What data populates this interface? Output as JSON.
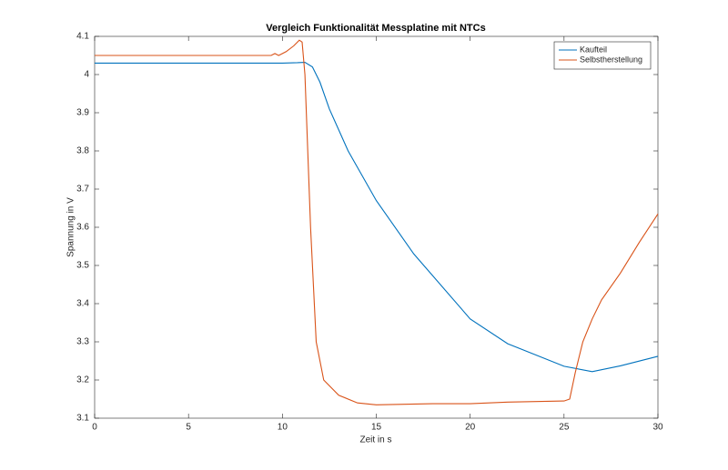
{
  "chart_data": {
    "type": "line",
    "title": "Vergleich Funktionalität Messplatine mit NTCs",
    "x_label": "Zeit in s",
    "y_label": "Spannung in V",
    "xlim": [
      0,
      30
    ],
    "xticks": [
      0,
      5,
      10,
      15,
      20,
      25,
      30
    ],
    "ylim": [
      3.1,
      4.1
    ],
    "yticks": [
      3.1,
      3.2,
      3.3,
      3.4,
      3.5,
      3.6,
      3.7,
      3.8,
      3.9,
      4,
      4.1
    ],
    "legend": "northeast",
    "grid": false,
    "series": [
      {
        "name": "Kaufteil",
        "color": "#0072bd",
        "x": [
          0,
          5,
          10,
          10.8,
          11.2,
          11.6,
          12,
          12.5,
          13.5,
          15,
          17,
          20,
          22,
          25,
          26.5,
          28,
          30
        ],
        "values": [
          4.03,
          4.03,
          4.03,
          4.031,
          4.032,
          4.02,
          3.98,
          3.91,
          3.8,
          3.67,
          3.53,
          3.36,
          3.295,
          3.236,
          3.222,
          3.237,
          3.262
        ]
      },
      {
        "name": "Selbstherstellung",
        "color": "#d95319",
        "x": [
          0,
          5,
          9.4,
          9.6,
          9.8,
          10.2,
          10.6,
          10.9,
          11.05,
          11.2,
          11.5,
          11.8,
          12.2,
          13,
          14,
          15,
          18,
          20,
          22,
          25,
          25.3,
          25.6,
          26,
          26.5,
          27,
          28,
          29,
          30
        ],
        "values": [
          4.05,
          4.05,
          4.05,
          4.055,
          4.05,
          4.06,
          4.075,
          4.09,
          4.085,
          4.0,
          3.6,
          3.3,
          3.2,
          3.16,
          3.14,
          3.135,
          3.138,
          3.138,
          3.142,
          3.145,
          3.15,
          3.22,
          3.3,
          3.36,
          3.41,
          3.48,
          3.56,
          3.635
        ]
      }
    ]
  }
}
